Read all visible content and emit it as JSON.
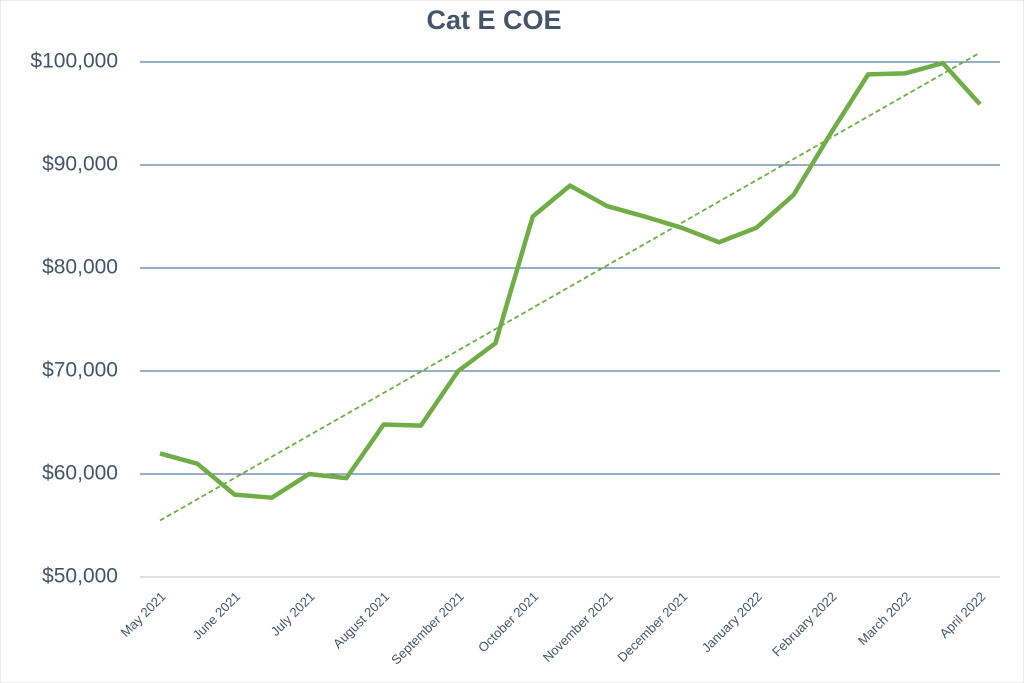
{
  "chart_data": {
    "type": "line",
    "title": "Cat E COE",
    "categories": [
      "May 2021",
      null,
      "June 2021",
      null,
      "July 2021",
      null,
      "August 2021",
      null,
      "September 2021",
      null,
      "October 2021",
      null,
      "November 2021",
      null,
      "December 2021",
      null,
      "January 2022",
      null,
      "February 2022",
      null,
      "March 2022",
      null,
      "April 2022"
    ],
    "series": [
      {
        "name": "Cat E COE",
        "color": "#70ad47",
        "values": [
          62000,
          61000,
          58000,
          57700,
          60000,
          59600,
          64800,
          64700,
          70000,
          72700,
          85000,
          88000,
          86000,
          85000,
          83900,
          82500,
          83900,
          87100,
          93100,
          98800,
          98900,
          99900,
          95900
        ]
      }
    ],
    "ylim": [
      50000,
      100000
    ],
    "yticks": [
      {
        "value": 50000,
        "label": "$50,000"
      },
      {
        "value": 60000,
        "label": "$60,000"
      },
      {
        "value": 70000,
        "label": "$70,000"
      },
      {
        "value": 80000,
        "label": "$80,000"
      },
      {
        "value": 90000,
        "label": "$90,000"
      },
      {
        "value": 100000,
        "label": "$100,000"
      }
    ],
    "grid": true,
    "trendline": "linear"
  }
}
